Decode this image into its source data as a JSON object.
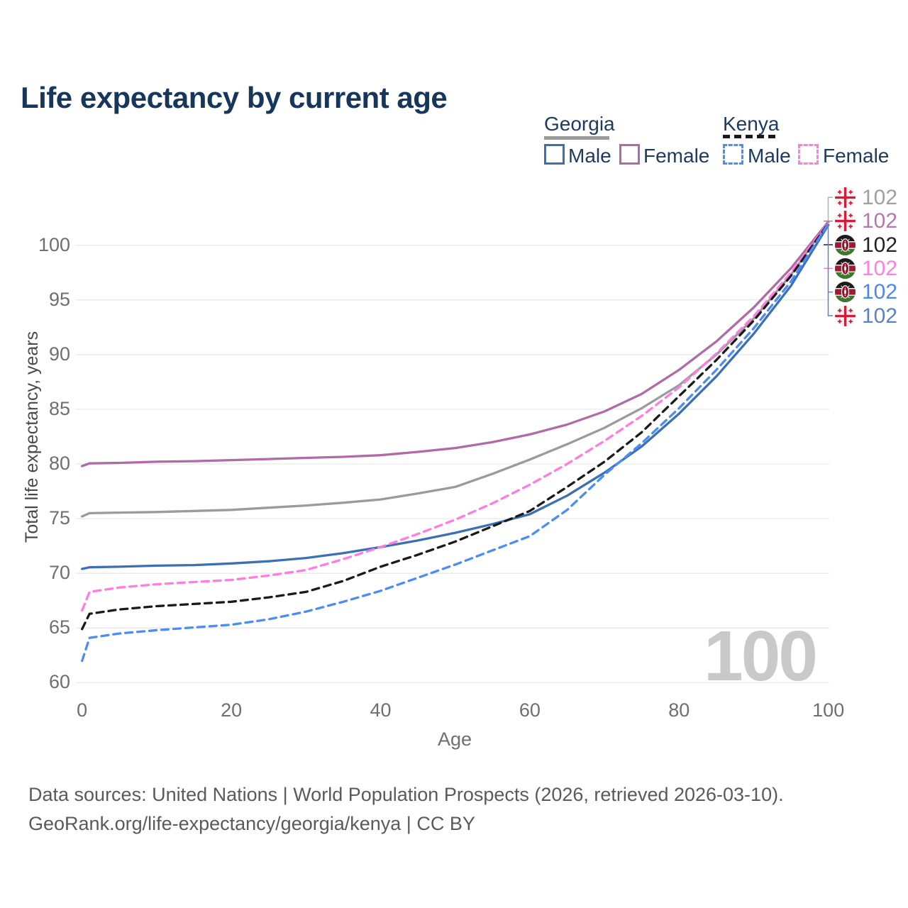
{
  "title": "Life expectancy by current age",
  "watermark": "100",
  "legend": {
    "georgia": {
      "label": "Georgia",
      "key_color": "#9b9b9b",
      "key_style": "solid",
      "items": [
        {
          "label": "Male",
          "color": "#3d6fb4",
          "style": "solid"
        },
        {
          "label": "Female",
          "color": "#b06aa5",
          "style": "solid"
        }
      ]
    },
    "kenya": {
      "label": "Kenya",
      "key_color": "#1a1a1a",
      "key_style": "dashed",
      "items": [
        {
          "label": "Male",
          "color": "#4c8cf5",
          "style": "dashed"
        },
        {
          "label": "Female",
          "color": "#ff7ce0",
          "style": "dashed"
        }
      ]
    }
  },
  "end_labels": [
    {
      "series": "Georgia (both sexes)",
      "country": "georgia",
      "value": "102",
      "color": "#a0a0a0"
    },
    {
      "series": "Georgia female",
      "country": "georgia",
      "value": "102",
      "color": "#b478ab"
    },
    {
      "series": "Kenya (both sexes)",
      "country": "kenya",
      "value": "102",
      "color": "#222222"
    },
    {
      "series": "Kenya female",
      "country": "kenya",
      "value": "102",
      "color": "#ff80e1"
    },
    {
      "series": "Kenya male",
      "country": "kenya",
      "value": "102",
      "color": "#4f86ee"
    },
    {
      "series": "Georgia male",
      "country": "georgia",
      "value": "102",
      "color": "#5c81c4"
    }
  ],
  "footer": {
    "line1": "Data sources: United Nations | World Population Prospects (2026, retrieved 2026-03-10).",
    "line2": "GeoRank.org/life-expectancy/georgia/kenya | CC BY"
  },
  "chart_data": {
    "type": "line",
    "title": "Life expectancy by current age",
    "xlabel": "Age",
    "ylabel": "Total life expectancy, years",
    "xlim": [
      0,
      100
    ],
    "ylim": [
      58.5,
      103
    ],
    "x_ticks": [
      0,
      20,
      40,
      60,
      80,
      100
    ],
    "y_ticks": [
      60,
      65,
      70,
      75,
      80,
      85,
      90,
      95,
      100
    ],
    "grid": "horizontal",
    "legend_position": "top-right",
    "ages": [
      0,
      1,
      5,
      10,
      15,
      20,
      25,
      30,
      35,
      40,
      45,
      50,
      55,
      60,
      65,
      70,
      75,
      80,
      85,
      90,
      95,
      100
    ],
    "series": [
      {
        "id": "georgia-all",
        "name": "Georgia (both sexes)",
        "country": "Georgia",
        "sex": "all",
        "line": "solid",
        "color": "#9b9b9b",
        "end_value": 102,
        "values": [
          75.2,
          75.5,
          75.55,
          75.6,
          75.7,
          75.8,
          76.0,
          76.2,
          76.45,
          76.75,
          77.3,
          77.9,
          79.1,
          80.4,
          81.8,
          83.3,
          85.1,
          87.2,
          90.0,
          93.3,
          97.3,
          102.1
        ]
      },
      {
        "id": "georgia-female",
        "name": "Georgia female",
        "country": "Georgia",
        "sex": "female",
        "line": "solid",
        "color": "#b06aa5",
        "end_value": 102,
        "values": [
          79.8,
          80.05,
          80.1,
          80.2,
          80.25,
          80.35,
          80.45,
          80.55,
          80.65,
          80.8,
          81.1,
          81.45,
          82.0,
          82.7,
          83.6,
          84.8,
          86.4,
          88.6,
          91.2,
          94.3,
          97.9,
          102.15
        ]
      },
      {
        "id": "georgia-male",
        "name": "Georgia male",
        "country": "Georgia",
        "sex": "male",
        "line": "solid",
        "color": "#3d6fb4",
        "end_value": 102,
        "values": [
          70.4,
          70.55,
          70.6,
          70.7,
          70.75,
          70.9,
          71.1,
          71.4,
          71.85,
          72.4,
          73.0,
          73.7,
          74.5,
          75.4,
          77.1,
          79.2,
          81.6,
          84.6,
          88.0,
          91.9,
          96.3,
          101.85
        ]
      },
      {
        "id": "kenya-female",
        "name": "Kenya female",
        "country": "Kenya",
        "sex": "female",
        "line": "dashed",
        "color": "#ff7ce0",
        "end_value": 102,
        "values": [
          66.6,
          68.3,
          68.7,
          69.0,
          69.2,
          69.4,
          69.8,
          70.3,
          71.3,
          72.4,
          73.6,
          74.9,
          76.4,
          78.1,
          80.0,
          82.1,
          84.4,
          87.0,
          90.1,
          93.5,
          97.5,
          102.1
        ]
      },
      {
        "id": "kenya-all",
        "name": "Kenya (both sexes)",
        "country": "Kenya",
        "sex": "all",
        "line": "dashed",
        "color": "#1a1a1a",
        "end_value": 102,
        "values": [
          64.9,
          66.3,
          66.7,
          67.0,
          67.2,
          67.4,
          67.8,
          68.3,
          69.3,
          70.6,
          71.7,
          72.9,
          74.3,
          75.7,
          77.9,
          80.2,
          82.9,
          86.2,
          89.5,
          93.1,
          97.2,
          102.0
        ]
      },
      {
        "id": "kenya-male",
        "name": "Kenya male",
        "country": "Kenya",
        "sex": "male",
        "line": "dashed",
        "color": "#4c8cf5",
        "end_value": 102,
        "values": [
          62.0,
          64.1,
          64.5,
          64.8,
          65.05,
          65.3,
          65.8,
          66.5,
          67.4,
          68.4,
          69.6,
          70.8,
          72.1,
          73.4,
          75.8,
          79.0,
          81.9,
          85.1,
          88.6,
          92.4,
          96.7,
          101.95
        ]
      }
    ]
  }
}
